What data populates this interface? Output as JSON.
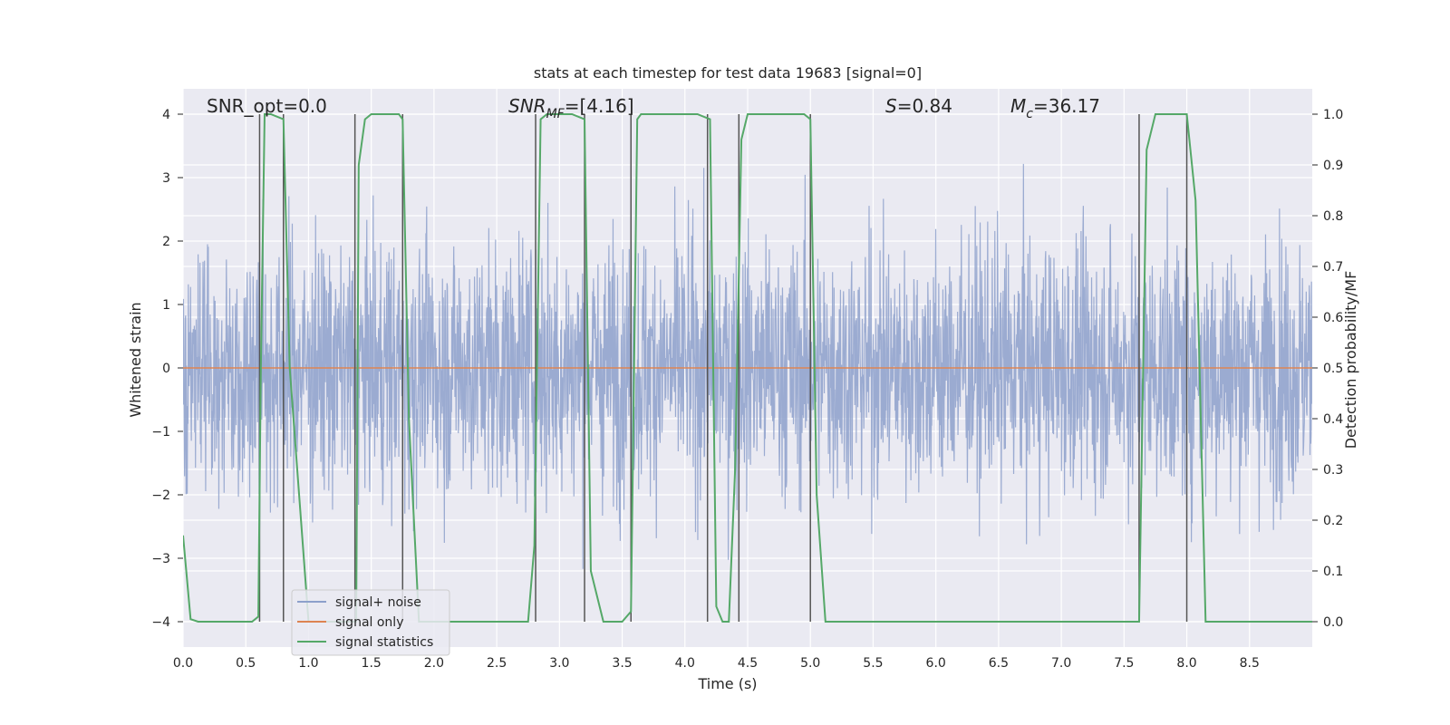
{
  "chart_data": {
    "type": "line",
    "title": "stats at each timestep for test data 19683 [signal=0]",
    "xlabel": "Time (s)",
    "ylabel": "Whitened strain",
    "y2label": "Detection probability/MF",
    "xlim": [
      0,
      9.0
    ],
    "ylim": [
      -4.4,
      4.4
    ],
    "y2lim": [
      -0.05,
      1.05
    ],
    "xticks": [
      0.0,
      0.5,
      1.0,
      1.5,
      2.0,
      2.5,
      3.0,
      3.5,
      4.0,
      4.5,
      5.0,
      5.5,
      6.0,
      6.5,
      7.0,
      7.5,
      8.0,
      8.5
    ],
    "xtick_labels": [
      "0.0",
      "0.5",
      "1.0",
      "1.5",
      "2.0",
      "2.5",
      "3.0",
      "3.5",
      "4.0",
      "4.5",
      "5.0",
      "5.5",
      "6.0",
      "6.5",
      "7.0",
      "7.5",
      "8.0",
      "8.5"
    ],
    "yticks": [
      4,
      3,
      2,
      1,
      0,
      -1,
      -2,
      -3,
      -4
    ],
    "ytick_labels": [
      "4",
      "3",
      "2",
      "1",
      "0",
      "−1",
      "−2",
      "−3",
      "−4"
    ],
    "y2ticks": [
      1.0,
      0.9,
      0.8,
      0.7,
      0.6,
      0.5,
      0.4,
      0.3,
      0.2,
      0.1,
      0.0
    ],
    "y2tick_labels": [
      "1.0",
      "0.9",
      "0.8",
      "0.7",
      "0.6",
      "0.5",
      "0.4",
      "0.3",
      "0.2",
      "0.1",
      "0.0"
    ],
    "grid": true,
    "legend_position": "lower-left",
    "annotations": {
      "snr_opt": "SNR_opt=0.0",
      "snr_mf_main": "SNR",
      "snr_mf_sub": "MF",
      "snr_mf_value": "=[4.16]",
      "s_var": "S",
      "s_value": "=0.84",
      "mc_var": "M",
      "mc_sub": "c",
      "mc_value": "=36.17"
    },
    "series": [
      {
        "name": "signal+ noise",
        "color": "#8da0cb",
        "axis": "left",
        "kind": "noise",
        "sample_rate_note": "dense whitened strain, amplitude mostly within ±2.5 with spikes to ±4",
        "envelope_typical": 2.0,
        "envelope_peak": 4.0
      },
      {
        "name": "signal only",
        "color": "#dd8452",
        "axis": "left",
        "kind": "line",
        "x": [
          0.0,
          9.0
        ],
        "y": [
          0.0,
          0.0
        ]
      },
      {
        "name": "signal statistics",
        "color": "#55a868",
        "axis": "right",
        "kind": "line",
        "x": [
          0.0,
          0.06,
          0.12,
          0.3,
          0.55,
          0.6,
          0.62,
          0.65,
          0.7,
          0.8,
          0.85,
          1.0,
          1.2,
          1.3,
          1.38,
          1.4,
          1.45,
          1.5,
          1.72,
          1.75,
          1.8,
          1.88,
          2.0,
          2.5,
          2.75,
          2.8,
          2.85,
          2.9,
          3.1,
          3.2,
          3.25,
          3.35,
          3.5,
          3.57,
          3.62,
          3.65,
          3.7,
          4.1,
          4.2,
          4.25,
          4.3,
          4.35,
          4.4,
          4.45,
          4.5,
          4.55,
          4.95,
          5.0,
          5.05,
          5.12,
          5.3,
          6.0,
          7.0,
          7.62,
          7.68,
          7.75,
          8.0,
          8.07,
          8.15,
          8.3,
          9.0
        ],
        "y": [
          0.17,
          0.005,
          0.0,
          0.0,
          0.0,
          0.01,
          0.5,
          1.0,
          1.0,
          0.99,
          0.5,
          0.0,
          0.0,
          0.0,
          0.0,
          0.9,
          0.99,
          1.0,
          1.0,
          0.99,
          0.4,
          0.0,
          0.0,
          0.0,
          0.0,
          0.15,
          0.99,
          1.0,
          1.0,
          0.99,
          0.1,
          0.0,
          0.0,
          0.02,
          0.99,
          1.0,
          1.0,
          1.0,
          0.99,
          0.03,
          0.0,
          0.0,
          0.3,
          0.95,
          1.0,
          1.0,
          1.0,
          0.99,
          0.25,
          0.0,
          0.0,
          0.0,
          0.0,
          0.0,
          0.93,
          1.0,
          1.0,
          0.83,
          0.0,
          0.0,
          0.0
        ]
      }
    ],
    "vertical_markers_x": [
      0.61,
      0.8,
      1.37,
      1.75,
      2.81,
      3.2,
      3.57,
      4.18,
      4.43,
      5.0,
      7.62,
      8.0
    ]
  }
}
